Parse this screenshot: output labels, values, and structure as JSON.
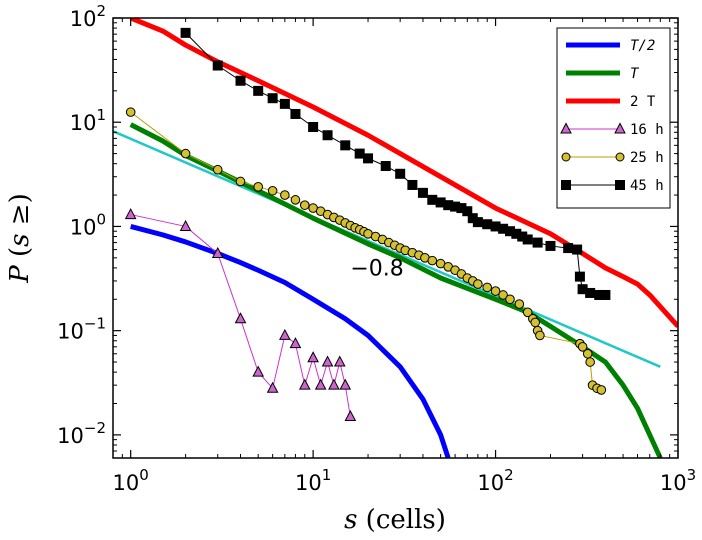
{
  "chart_data": {
    "type": "line",
    "title": "",
    "xlabel": {
      "var": "s",
      "unit": " (cells)"
    },
    "ylabel": {
      "prefix": "P",
      "open": " (",
      "var": "s",
      "rel": " ≥",
      "close": ")"
    },
    "xscale": "log",
    "yscale": "log",
    "xlim": [
      0.8,
      1000
    ],
    "ylim": [
      0.006,
      100
    ],
    "grid": false,
    "legend_position": "top-right",
    "x_ticks": [
      {
        "value": 1,
        "label": "10",
        "exp": "0"
      },
      {
        "value": 10,
        "label": "10",
        "exp": "1"
      },
      {
        "value": 100,
        "label": "10",
        "exp": "2"
      },
      {
        "value": 1000,
        "label": "10",
        "exp": "3"
      }
    ],
    "y_ticks": [
      {
        "value": 0.01,
        "label": "10",
        "exp": "−2"
      },
      {
        "value": 0.1,
        "label": "10",
        "exp": "−1"
      },
      {
        "value": 1,
        "label": "10",
        "exp": "0"
      },
      {
        "value": 10,
        "label": "10",
        "exp": "1"
      },
      {
        "value": 100,
        "label": "10",
        "exp": "2"
      }
    ],
    "annotations": [
      {
        "text": "−0.8",
        "x": 16,
        "y": 0.34
      }
    ],
    "fit_line": {
      "color": "#22c7c7",
      "points": [
        [
          0.8,
          8.2
        ],
        [
          800,
          0.045
        ]
      ]
    },
    "series": [
      {
        "name": "T/2",
        "name_style": "italic",
        "color": "#0000ff",
        "width": 5,
        "marker": "none",
        "points": [
          [
            1,
            1.0
          ],
          [
            1.5,
            0.83
          ],
          [
            2,
            0.71
          ],
          [
            3,
            0.55
          ],
          [
            4,
            0.45
          ],
          [
            5,
            0.38
          ],
          [
            7,
            0.29
          ],
          [
            10,
            0.2
          ],
          [
            15,
            0.13
          ],
          [
            20,
            0.09
          ],
          [
            30,
            0.045
          ],
          [
            40,
            0.022
          ],
          [
            50,
            0.01
          ],
          [
            55,
            0.006
          ]
        ]
      },
      {
        "name": "T",
        "name_style": "italic",
        "color": "#008000",
        "width": 5,
        "marker": "none",
        "points": [
          [
            1,
            9.5
          ],
          [
            1.5,
            6.6
          ],
          [
            2,
            4.8
          ],
          [
            3,
            3.4
          ],
          [
            5,
            2.2
          ],
          [
            10,
            1.2
          ],
          [
            20,
            0.68
          ],
          [
            30,
            0.5
          ],
          [
            50,
            0.32
          ],
          [
            100,
            0.2
          ],
          [
            150,
            0.15
          ],
          [
            200,
            0.11
          ],
          [
            300,
            0.07
          ],
          [
            400,
            0.05
          ],
          [
            500,
            0.03
          ],
          [
            600,
            0.018
          ],
          [
            700,
            0.01
          ],
          [
            800,
            0.006
          ]
        ]
      },
      {
        "name": "2 T",
        "name_style": "mixed",
        "color": "#ff0000",
        "width": 5,
        "marker": "none",
        "points": [
          [
            1,
            100
          ],
          [
            1.5,
            75
          ],
          [
            2,
            55
          ],
          [
            3,
            38
          ],
          [
            5,
            25
          ],
          [
            10,
            14
          ],
          [
            20,
            7.5
          ],
          [
            30,
            5
          ],
          [
            50,
            3
          ],
          [
            100,
            1.5
          ],
          [
            200,
            0.85
          ],
          [
            300,
            0.55
          ],
          [
            400,
            0.4
          ],
          [
            500,
            0.33
          ],
          [
            600,
            0.28
          ],
          [
            700,
            0.22
          ],
          [
            800,
            0.17
          ],
          [
            1000,
            0.11
          ]
        ]
      },
      {
        "name": "16 h",
        "color": "#cc33cc",
        "width": 1,
        "marker": "triangle",
        "marker_fill": "#cc66cc",
        "points": [
          [
            1,
            1.3
          ],
          [
            2,
            1.0
          ],
          [
            3,
            0.55
          ],
          [
            4,
            0.13
          ],
          [
            5,
            0.04
          ],
          [
            6,
            0.028
          ],
          [
            7,
            0.09
          ],
          [
            8,
            0.075
          ],
          [
            9,
            0.03
          ],
          [
            10,
            0.055
          ],
          [
            11,
            0.03
          ],
          [
            12,
            0.05
          ],
          [
            13,
            0.03
          ],
          [
            14,
            0.05
          ],
          [
            15,
            0.03
          ],
          [
            16,
            0.015
          ]
        ]
      },
      {
        "name": "25 h",
        "color": "#b8a000",
        "width": 1,
        "marker": "circle",
        "marker_fill": "#d4c030",
        "points": [
          [
            1,
            12.5
          ],
          [
            2,
            5.0
          ],
          [
            3,
            3.5
          ],
          [
            4,
            2.7
          ],
          [
            5,
            2.4
          ],
          [
            6,
            2.2
          ],
          [
            7,
            2.0
          ],
          [
            8,
            1.8
          ],
          [
            9,
            1.6
          ],
          [
            10,
            1.5
          ],
          [
            11,
            1.4
          ],
          [
            12,
            1.3
          ],
          [
            13,
            1.22
          ],
          [
            14,
            1.15
          ],
          [
            15,
            1.08
          ],
          [
            16,
            1.02
          ],
          [
            17,
            0.97
          ],
          [
            18,
            0.93
          ],
          [
            19,
            0.89
          ],
          [
            20,
            0.85
          ],
          [
            22,
            0.8
          ],
          [
            24,
            0.75
          ],
          [
            26,
            0.7
          ],
          [
            28,
            0.66
          ],
          [
            30,
            0.62
          ],
          [
            32,
            0.59
          ],
          [
            35,
            0.56
          ],
          [
            38,
            0.53
          ],
          [
            41,
            0.5
          ],
          [
            45,
            0.47
          ],
          [
            50,
            0.44
          ],
          [
            55,
            0.41
          ],
          [
            60,
            0.38
          ],
          [
            65,
            0.35
          ],
          [
            70,
            0.32
          ],
          [
            75,
            0.3
          ],
          [
            80,
            0.28
          ],
          [
            90,
            0.26
          ],
          [
            100,
            0.24
          ],
          [
            110,
            0.22
          ],
          [
            120,
            0.2
          ],
          [
            135,
            0.18
          ],
          [
            150,
            0.15
          ],
          [
            160,
            0.13
          ],
          [
            165,
            0.12
          ],
          [
            170,
            0.1
          ],
          [
            175,
            0.09
          ],
          [
            290,
            0.075
          ],
          [
            300,
            0.07
          ],
          [
            320,
            0.06
          ],
          [
            330,
            0.05
          ],
          [
            340,
            0.03
          ],
          [
            360,
            0.028
          ],
          [
            380,
            0.027
          ]
        ]
      },
      {
        "name": "45 h",
        "color": "#000000",
        "width": 1,
        "marker": "square",
        "marker_fill": "#000000",
        "points": [
          [
            2,
            72
          ],
          [
            3,
            35
          ],
          [
            4,
            25
          ],
          [
            5,
            20
          ],
          [
            6,
            17
          ],
          [
            7,
            15
          ],
          [
            8,
            12
          ],
          [
            10,
            9
          ],
          [
            12,
            7.5
          ],
          [
            15,
            6
          ],
          [
            18,
            5
          ],
          [
            20,
            4.5
          ],
          [
            25,
            3.8
          ],
          [
            30,
            3.2
          ],
          [
            35,
            2.5
          ],
          [
            40,
            2.1
          ],
          [
            45,
            1.8
          ],
          [
            50,
            1.7
          ],
          [
            55,
            1.6
          ],
          [
            60,
            1.55
          ],
          [
            65,
            1.5
          ],
          [
            70,
            1.4
          ],
          [
            75,
            1.2
          ],
          [
            80,
            1.1
          ],
          [
            90,
            1.05
          ],
          [
            100,
            1.0
          ],
          [
            110,
            0.95
          ],
          [
            120,
            0.9
          ],
          [
            130,
            0.85
          ],
          [
            140,
            0.8
          ],
          [
            150,
            0.75
          ],
          [
            170,
            0.7
          ],
          [
            200,
            0.65
          ],
          [
            250,
            0.62
          ],
          [
            280,
            0.6
          ],
          [
            290,
            0.33
          ],
          [
            300,
            0.25
          ],
          [
            330,
            0.23
          ],
          [
            370,
            0.22
          ],
          [
            400,
            0.22
          ]
        ]
      }
    ]
  }
}
